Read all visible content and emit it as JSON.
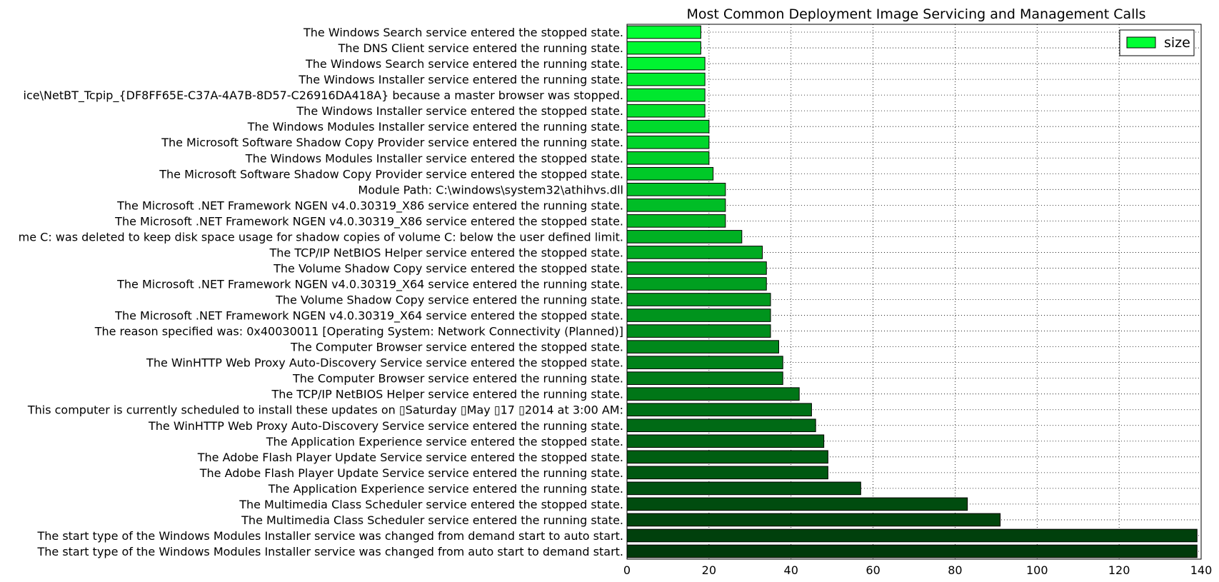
{
  "chart_data": {
    "type": "bar",
    "orientation": "horizontal",
    "title": "Most Common Deployment Image Servicing and Management Calls",
    "xlabel": "",
    "ylabel": "",
    "xlim": [
      0,
      140
    ],
    "xticks": [
      "0",
      "20",
      "40",
      "60",
      "80",
      "100",
      "120",
      "140"
    ],
    "grid": true,
    "legend": {
      "position": "top-right",
      "entries": [
        "size"
      ]
    },
    "colors": {
      "low": "#003a0b",
      "high": "#00ff33",
      "edge": "#000000"
    },
    "categories": [
      "The Windows Search service entered the stopped state.",
      "The DNS Client service entered the running state.",
      "The Windows Search service entered the running state.",
      "The Windows Installer service entered the running state.",
      "ice\\NetBT_Tcpip_{DF8FF65E-C37A-4A7B-8D57-C26916DA418A} because a master browser was stopped.",
      "The Windows Installer service entered the stopped state.",
      "The Windows Modules Installer service entered the running state.",
      "The Microsoft Software Shadow Copy Provider service entered the running state.",
      "The Windows Modules Installer service entered the stopped state.",
      "The Microsoft Software Shadow Copy Provider service entered the stopped state.",
      "Module Path: C:\\windows\\system32\\athihvs.dll",
      "The Microsoft .NET Framework NGEN v4.0.30319_X86 service entered the running state.",
      "The Microsoft .NET Framework NGEN v4.0.30319_X86 service entered the stopped state.",
      "me C: was deleted to keep disk space usage for shadow copies of volume C: below the user defined limit.",
      "The TCP/IP NetBIOS Helper service entered the stopped state.",
      "The Volume Shadow Copy service entered the stopped state.",
      "The Microsoft .NET Framework NGEN v4.0.30319_X64 service entered the running state.",
      "The Volume Shadow Copy service entered the running state.",
      "The Microsoft .NET Framework NGEN v4.0.30319_X64 service entered the stopped state.",
      "The reason specified was: 0x40030011 [Operating System: Network Connectivity (Planned)]",
      "The Computer Browser service entered the stopped state.",
      "The WinHTTP Web Proxy Auto-Discovery Service service entered the stopped state.",
      "The Computer Browser service entered the running state.",
      "The TCP/IP NetBIOS Helper service entered the running state.",
      "This computer is currently scheduled to install these updates on ▯Saturday ▯May ▯17 ▯2014 at 3:00 AM:",
      "The WinHTTP Web Proxy Auto-Discovery Service service entered the running state.",
      "The Application Experience service entered the stopped state.",
      "The Adobe Flash Player Update Service service entered the stopped state.",
      "The Adobe Flash Player Update Service service entered the running state.",
      "The Application Experience service entered the running state.",
      "The Multimedia Class Scheduler service entered the stopped state.",
      "The Multimedia Class Scheduler service entered the running state.",
      "The start type of the Windows Modules Installer service was changed from demand start to auto start.",
      "The start type of the Windows Modules Installer service was changed from auto start to demand start."
    ],
    "series": [
      {
        "name": "size",
        "values": [
          18,
          18,
          19,
          19,
          19,
          19,
          20,
          20,
          20,
          21,
          24,
          24,
          24,
          28,
          33,
          34,
          34,
          35,
          35,
          35,
          37,
          38,
          38,
          42,
          45,
          46,
          48,
          49,
          49,
          57,
          83,
          91,
          139,
          139
        ]
      }
    ]
  }
}
